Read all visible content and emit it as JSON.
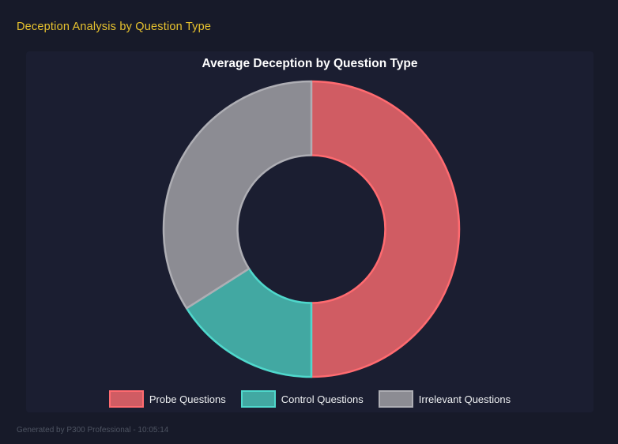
{
  "page": {
    "title": "Deception Analysis by Question Type",
    "footer": "Generated by P300 Professional - 10:05:14"
  },
  "colors": {
    "page_bg": "#171a29",
    "panel_bg": "#1b1e31",
    "title_yellow": "#e8c32e",
    "chart_title_color": "#ffffff",
    "legend_text": "#eef0f2",
    "footer_text": "#4e5462"
  },
  "chart_data": {
    "type": "pie",
    "subtype": "doughnut",
    "title": "Average Deception by Question Type",
    "labels": [
      "Probe Questions",
      "Control Questions",
      "Irrelevant Questions"
    ],
    "values": [
      50,
      16,
      34
    ],
    "value_unit": "percent of circle (estimated from slice angles: 180°, 57.5°, 122.5°)",
    "start_angle_deg": 0,
    "direction": "clockwise",
    "inner_radius_ratio": 0.5,
    "segment_fill_colors": [
      "#d05c63",
      "#42a8a2",
      "#8c8c93"
    ],
    "segment_border_colors": [
      "#ff6b70",
      "#4fd8cc",
      "#aeaeb4"
    ],
    "legend_position": "bottom",
    "grid": false
  }
}
